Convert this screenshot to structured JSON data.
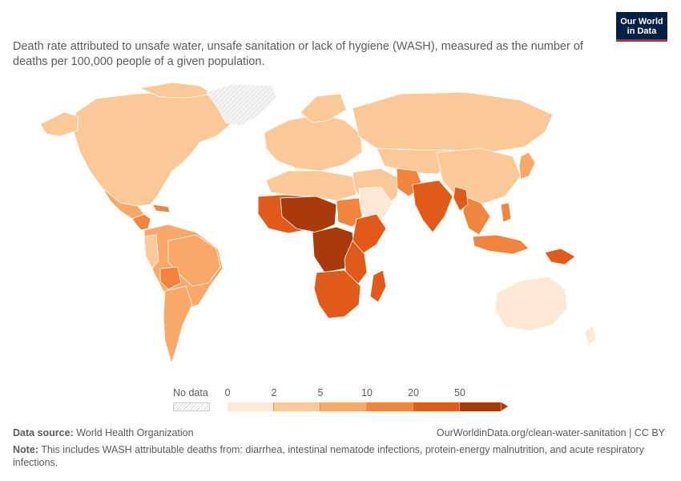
{
  "subtitle": "Death rate attributed to unsafe water, unsafe sanitation or lack of hygiene (WASH), measured as the number of deaths per 100,000 people of a given population.",
  "logo": {
    "line1": "Our World",
    "line2": "in Data"
  },
  "legend": {
    "no_data_label": "No data",
    "ticks": [
      "0",
      "2",
      "5",
      "10",
      "20",
      "50"
    ],
    "bin_colors": [
      "#fde8d6",
      "#fbc997",
      "#f9a868",
      "#f1853e",
      "#e05a1a",
      "#a83a0c"
    ]
  },
  "map_colors": {
    "very_low": "#fde8d6",
    "low": "#fbc997",
    "medium": "#f9a868",
    "high": "#f1853e",
    "very_high": "#e05a1a",
    "extreme": "#a83a0c",
    "no_data": "#e8e8e8",
    "border": "#ffffff"
  },
  "footer": {
    "source_label": "Data source:",
    "source_value": "World Health Organization",
    "url": "OurWorldinData.org/clean-water-sanitation | CC BY",
    "note_label": "Note:",
    "note_text": "This includes WASH attributable deaths from: diarrhea, intestinal nematode infections, protein-energy malnutrition, and acute respiratory infections."
  }
}
